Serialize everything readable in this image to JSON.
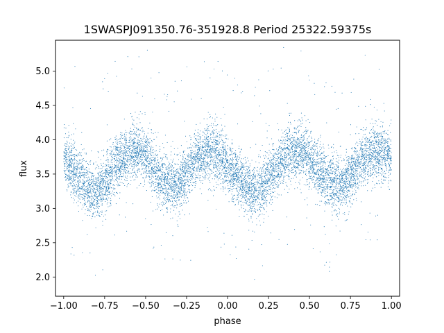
{
  "chart_data": {
    "type": "scatter",
    "title": "1SWASPJ091350.76-351928.8 Period 25322.59375s",
    "xlabel": "phase",
    "ylabel": "flux",
    "xlim": [
      -1.05,
      1.05
    ],
    "ylim": [
      1.72,
      5.45
    ],
    "x_ticks": [
      -1.0,
      -0.75,
      -0.5,
      -0.25,
      0.0,
      0.25,
      0.5,
      0.75,
      1.0
    ],
    "x_tick_labels": [
      "−1.00",
      "−0.75",
      "−0.50",
      "−0.25",
      "0.00",
      "0.25",
      "0.50",
      "0.75",
      "1.00"
    ],
    "y_ticks": [
      2.0,
      2.5,
      3.0,
      3.5,
      4.0,
      4.5,
      5.0
    ],
    "y_tick_labels": [
      "2.0",
      "2.5",
      "3.0",
      "3.5",
      "4.0",
      "4.5",
      "5.0"
    ],
    "grid": false,
    "legend": "none",
    "marker_color": "#1f77b4",
    "series": [
      {
        "x": [
          -1.0,
          -0.95,
          -0.9,
          -0.85,
          -0.8,
          -0.75,
          -0.7,
          -0.65,
          -0.6,
          -0.55,
          -0.5,
          -0.45,
          -0.4,
          -0.35,
          -0.3,
          -0.25,
          -0.2,
          -0.15,
          -0.1,
          -0.05,
          0.0,
          0.05,
          0.1,
          0.15,
          0.2,
          0.25,
          0.3,
          0.35,
          0.4,
          0.45,
          0.5,
          0.55,
          0.6,
          0.65,
          0.7,
          0.75,
          0.8,
          0.85,
          0.9,
          0.95,
          1.0
        ],
        "y": [
          3.75,
          3.6,
          3.42,
          3.28,
          3.22,
          3.35,
          3.55,
          3.72,
          3.82,
          3.85,
          3.75,
          3.58,
          3.42,
          3.35,
          3.36,
          3.5,
          3.68,
          3.8,
          3.83,
          3.78,
          3.65,
          3.5,
          3.35,
          3.22,
          3.28,
          3.42,
          3.6,
          3.75,
          3.82,
          3.82,
          3.72,
          3.56,
          3.42,
          3.36,
          3.34,
          3.48,
          3.65,
          3.78,
          3.82,
          3.8,
          3.75
        ],
        "scatter_sd": 0.2
      }
    ]
  }
}
